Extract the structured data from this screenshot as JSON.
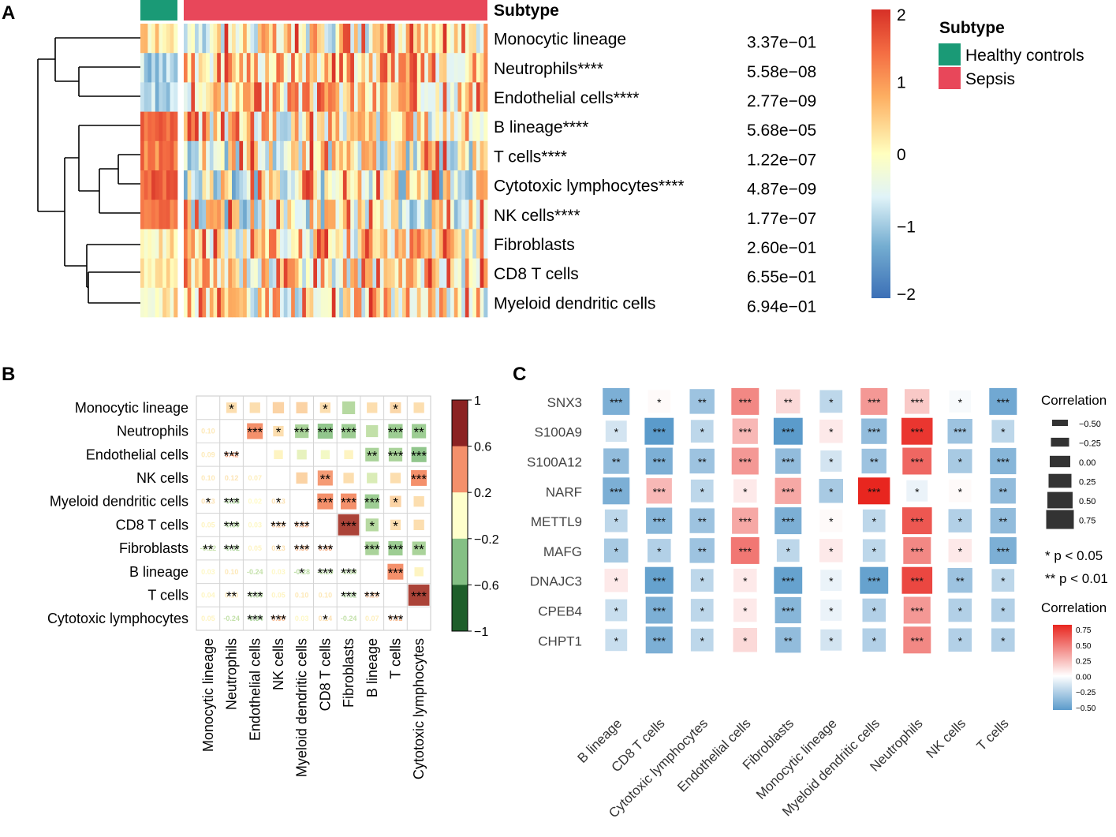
{
  "panels": {
    "a": "A",
    "b": "B",
    "c": "C"
  },
  "colors": {
    "healthy": "#1a9a76",
    "sepsis": "#e8475a",
    "text": "#000000",
    "heat_scale": [
      "#3b6fb6",
      "#74add1",
      "#e0f3f8",
      "#ffffbf",
      "#fdae61",
      "#f46d43",
      "#d73027"
    ],
    "corr_b_scale": [
      "#1e5e2a",
      "#85c085",
      "#ffffcc",
      "#f4906b",
      "#8b2222"
    ],
    "corr_c_scale": [
      "#5b9bcb",
      "#ffffff",
      "#e8261f"
    ]
  },
  "chart_data": [
    {
      "panel": "A",
      "type": "heatmap",
      "title": "Subtype",
      "annotation_title": "Subtype",
      "groups": [
        {
          "name": "Healthy controls",
          "count": 10
        },
        {
          "name": "Sepsis",
          "count": 82
        }
      ],
      "rows": [
        {
          "label": "Monocytic lineage",
          "pvalue": "3.37e−01",
          "control_mean": 0.2,
          "sepsis_mean": 0.0
        },
        {
          "label": "Neutrophils****",
          "pvalue": "5.58e−08",
          "control_mean": -1.0,
          "sepsis_mean": 0.5
        },
        {
          "label": "Endothelial cells****",
          "pvalue": "2.77e−09",
          "control_mean": -0.9,
          "sepsis_mean": 0.3
        },
        {
          "label": "B lineage****",
          "pvalue": "5.68e−05",
          "control_mean": 1.3,
          "sepsis_mean": 0.1
        },
        {
          "label": "T cells****",
          "pvalue": "1.22e−07",
          "control_mean": 1.2,
          "sepsis_mean": -0.2
        },
        {
          "label": "Cytotoxic lymphocytes****",
          "pvalue": "4.87e−09",
          "control_mean": 1.5,
          "sepsis_mean": -0.3
        },
        {
          "label": "NK cells****",
          "pvalue": "1.77e−07",
          "control_mean": 1.4,
          "sepsis_mean": -0.2
        },
        {
          "label": "Fibroblasts",
          "pvalue": "2.60e−01",
          "control_mean": 0.1,
          "sepsis_mean": 0.2
        },
        {
          "label": "CD8 T cells",
          "pvalue": "6.55e−01",
          "control_mean": 0.1,
          "sepsis_mean": 0.1
        },
        {
          "label": "Myeloid dendritic cells",
          "pvalue": "6.94e−01",
          "control_mean": 0.1,
          "sepsis_mean": 0.1
        }
      ],
      "colorbar": {
        "min": -2,
        "max": 2,
        "ticks": [
          "2",
          "1",
          "0",
          "−1",
          "−2"
        ]
      },
      "legend": {
        "title": "Subtype",
        "items": [
          "Healthy controls",
          "Sepsis"
        ]
      }
    },
    {
      "panel": "B",
      "type": "heatmap",
      "variables": [
        "Monocytic lineage",
        "Neutrophils",
        "Endothelial cells",
        "NK cells",
        "Myeloid dendritic cells",
        "CD8 T cells",
        "Fibroblasts",
        "B lineage",
        "T cells",
        "Cytotoxic lymphocytes"
      ],
      "upper": [
        {
          "r": 0,
          "c": 1,
          "v": 0.15,
          "s": "*"
        },
        {
          "r": 0,
          "c": 2,
          "v": 0.15,
          "s": ""
        },
        {
          "r": 0,
          "c": 3,
          "v": 0.2,
          "s": ""
        },
        {
          "r": 0,
          "c": 4,
          "v": 0.2,
          "s": ""
        },
        {
          "r": 0,
          "c": 5,
          "v": 0.15,
          "s": "*"
        },
        {
          "r": 0,
          "c": 6,
          "v": -0.3,
          "s": ""
        },
        {
          "r": 0,
          "c": 7,
          "v": 0.15,
          "s": ""
        },
        {
          "r": 0,
          "c": 8,
          "v": 0.18,
          "s": "*"
        },
        {
          "r": 0,
          "c": 9,
          "v": 0.15,
          "s": ""
        },
        {
          "r": 1,
          "c": 2,
          "v": 0.5,
          "s": "***"
        },
        {
          "r": 1,
          "c": 3,
          "v": 0.15,
          "s": "*"
        },
        {
          "r": 1,
          "c": 4,
          "v": -0.35,
          "s": "***"
        },
        {
          "r": 1,
          "c": 5,
          "v": -0.45,
          "s": "***"
        },
        {
          "r": 1,
          "c": 6,
          "v": -0.4,
          "s": "***"
        },
        {
          "r": 1,
          "c": 7,
          "v": -0.25,
          "s": ""
        },
        {
          "r": 1,
          "c": 8,
          "v": -0.4,
          "s": "***"
        },
        {
          "r": 1,
          "c": 9,
          "v": -0.4,
          "s": "**"
        },
        {
          "r": 2,
          "c": 3,
          "v": 0.05,
          "s": ""
        },
        {
          "r": 2,
          "c": 4,
          "v": -0.1,
          "s": ""
        },
        {
          "r": 2,
          "c": 5,
          "v": -0.05,
          "s": ""
        },
        {
          "r": 2,
          "c": 6,
          "v": 0.05,
          "s": ""
        },
        {
          "r": 2,
          "c": 7,
          "v": -0.35,
          "s": "**"
        },
        {
          "r": 2,
          "c": 8,
          "v": -0.35,
          "s": "***"
        },
        {
          "r": 2,
          "c": 9,
          "v": -0.45,
          "s": "***"
        },
        {
          "r": 3,
          "c": 4,
          "v": 0.2,
          "s": ""
        },
        {
          "r": 3,
          "c": 5,
          "v": 0.45,
          "s": "**"
        },
        {
          "r": 3,
          "c": 6,
          "v": 0.15,
          "s": ""
        },
        {
          "r": 3,
          "c": 7,
          "v": -0.15,
          "s": ""
        },
        {
          "r": 3,
          "c": 8,
          "v": 0.15,
          "s": ""
        },
        {
          "r": 3,
          "c": 9,
          "v": 0.5,
          "s": "***"
        },
        {
          "r": 4,
          "c": 5,
          "v": 0.5,
          "s": "***"
        },
        {
          "r": 4,
          "c": 6,
          "v": 0.5,
          "s": "***"
        },
        {
          "r": 4,
          "c": 7,
          "v": -0.4,
          "s": "***"
        },
        {
          "r": 4,
          "c": 8,
          "v": 0.2,
          "s": "*"
        },
        {
          "r": 4,
          "c": 9,
          "v": 0.15,
          "s": ""
        },
        {
          "r": 5,
          "c": 6,
          "v": 0.85,
          "s": "***"
        },
        {
          "r": 5,
          "c": 7,
          "v": -0.3,
          "s": "*"
        },
        {
          "r": 5,
          "c": 8,
          "v": 0.15,
          "s": "*"
        },
        {
          "r": 5,
          "c": 9,
          "v": 0.15,
          "s": ""
        },
        {
          "r": 6,
          "c": 7,
          "v": -0.35,
          "s": "***"
        },
        {
          "r": 6,
          "c": 8,
          "v": -0.4,
          "s": "***"
        },
        {
          "r": 6,
          "c": 9,
          "v": -0.35,
          "s": "**"
        },
        {
          "r": 7,
          "c": 8,
          "v": 0.5,
          "s": "***"
        },
        {
          "r": 7,
          "c": 9,
          "v": 0.05,
          "s": ""
        },
        {
          "r": 8,
          "c": 9,
          "v": 0.85,
          "s": "***"
        }
      ],
      "lower": [
        {
          "r": 1,
          "c": 0,
          "t": "0.10",
          "s": ""
        },
        {
          "r": 2,
          "c": 0,
          "t": "0.09",
          "s": ""
        },
        {
          "r": 2,
          "c": 1,
          "t": "0.42",
          "s": "***"
        },
        {
          "r": 3,
          "c": 0,
          "t": "0.10",
          "s": ""
        },
        {
          "r": 3,
          "c": 1,
          "t": "0.12",
          "s": ""
        },
        {
          "r": 3,
          "c": 2,
          "t": "0.07",
          "s": ""
        },
        {
          "r": 4,
          "c": 0,
          "t": "0.13",
          "s": "*"
        },
        {
          "r": 4,
          "c": 1,
          "t": "-0.33",
          "s": "***"
        },
        {
          "r": 4,
          "c": 2,
          "t": "0.02",
          "s": ""
        },
        {
          "r": 4,
          "c": 3,
          "t": "0.13",
          "s": "*"
        },
        {
          "r": 5,
          "c": 0,
          "t": "0.05",
          "s": ""
        },
        {
          "r": 5,
          "c": 1,
          "t": "-0.30",
          "s": "***"
        },
        {
          "r": 5,
          "c": 2,
          "t": "0.03",
          "s": ""
        },
        {
          "r": 5,
          "c": 3,
          "t": "0.26",
          "s": "***"
        },
        {
          "r": 5,
          "c": 4,
          "t": "0.33",
          "s": "***"
        },
        {
          "r": 6,
          "c": 0,
          "t": "-0.22",
          "s": "**"
        },
        {
          "r": 6,
          "c": 1,
          "t": "-0.32",
          "s": "***"
        },
        {
          "r": 6,
          "c": 2,
          "t": "0.05",
          "s": ""
        },
        {
          "r": 6,
          "c": 3,
          "t": "0.13",
          "s": "*"
        },
        {
          "r": 6,
          "c": 4,
          "t": "0.30",
          "s": "***"
        },
        {
          "r": 6,
          "c": 5,
          "t": "0.36",
          "s": "***"
        },
        {
          "r": 7,
          "c": 0,
          "t": "0.03",
          "s": ""
        },
        {
          "r": 7,
          "c": 1,
          "t": "0.10",
          "s": ""
        },
        {
          "r": 7,
          "c": 2,
          "t": "-0.24",
          "s": ""
        },
        {
          "r": 7,
          "c": 3,
          "t": "0.03",
          "s": ""
        },
        {
          "r": 7,
          "c": 4,
          "t": "-0.28",
          "s": "*"
        },
        {
          "r": 7,
          "c": 5,
          "t": "-0.29",
          "s": "***"
        },
        {
          "r": 7,
          "c": 6,
          "t": "-0.30",
          "s": "***"
        },
        {
          "r": 8,
          "c": 0,
          "t": "0.04",
          "s": ""
        },
        {
          "r": 8,
          "c": 1,
          "t": "0.10",
          "s": "**"
        },
        {
          "r": 8,
          "c": 2,
          "t": "-0.30",
          "s": "***"
        },
        {
          "r": 8,
          "c": 3,
          "t": "0.05",
          "s": ""
        },
        {
          "r": 8,
          "c": 4,
          "t": "0.10",
          "s": ""
        },
        {
          "r": 8,
          "c": 5,
          "t": "0.10",
          "s": ""
        },
        {
          "r": 8,
          "c": 6,
          "t": "-0.32",
          "s": "***"
        },
        {
          "r": 8,
          "c": 7,
          "t": "0.29",
          "s": "***"
        },
        {
          "r": 9,
          "c": 0,
          "t": "0.05",
          "s": ""
        },
        {
          "r": 9,
          "c": 1,
          "t": "-0.24",
          "s": ""
        },
        {
          "r": 9,
          "c": 2,
          "t": "-0.34",
          "s": "***"
        },
        {
          "r": 9,
          "c": 3,
          "t": "0.30",
          "s": "***"
        },
        {
          "r": 9,
          "c": 4,
          "t": "0.03",
          "s": ""
        },
        {
          "r": 9,
          "c": 5,
          "t": "0.14",
          "s": "*"
        },
        {
          "r": 9,
          "c": 6,
          "t": "-0.24",
          "s": ""
        },
        {
          "r": 9,
          "c": 7,
          "t": "0.07",
          "s": ""
        },
        {
          "r": 9,
          "c": 8,
          "t": "0.31",
          "s": "***"
        }
      ],
      "colorbar": {
        "min": -1,
        "max": 1,
        "ticks": [
          "1",
          "0.6",
          "0.2",
          "−0.2",
          "−0.6",
          "−1"
        ]
      }
    },
    {
      "panel": "C",
      "type": "heatmap",
      "genes": [
        "SNX3",
        "S100A9",
        "S100A12",
        "NARF",
        "METTL9",
        "MAFG",
        "DNAJC3",
        "CPEB4",
        "CHPT1"
      ],
      "cells": [
        "B lineage",
        "CD8 T cells",
        "Cytotoxic lymphocytes",
        "Endothelial cells",
        "Fibroblasts",
        "Monocytic lineage",
        "Myeloid dendritic cells",
        "Neutrophils",
        "NK cells",
        "T cells"
      ],
      "values": [
        [
          -0.45,
          0.15,
          -0.3,
          0.5,
          0.25,
          -0.15,
          0.45,
          0.3,
          0.1,
          -0.5
        ],
        [
          -0.05,
          -0.6,
          -0.15,
          0.35,
          -0.6,
          0.2,
          -0.35,
          0.75,
          -0.3,
          -0.15
        ],
        [
          -0.35,
          -0.45,
          -0.3,
          0.45,
          -0.35,
          -0.05,
          -0.3,
          0.6,
          -0.25,
          -0.4
        ],
        [
          -0.45,
          0.35,
          -0.15,
          0.2,
          0.4,
          -0.25,
          0.8,
          0.05,
          0.15,
          -0.35
        ],
        [
          -0.15,
          -0.4,
          -0.3,
          0.4,
          -0.45,
          0.15,
          -0.15,
          0.65,
          -0.2,
          -0.35
        ],
        [
          -0.25,
          -0.2,
          -0.3,
          0.55,
          -0.15,
          0.2,
          -0.15,
          0.5,
          0.2,
          -0.45
        ],
        [
          0.2,
          -0.55,
          -0.15,
          0.2,
          -0.55,
          0.05,
          -0.55,
          0.7,
          -0.3,
          -0.15
        ],
        [
          -0.1,
          -0.45,
          -0.15,
          0.2,
          -0.4,
          0.05,
          -0.2,
          0.45,
          -0.2,
          -0.2
        ],
        [
          -0.1,
          -0.45,
          -0.15,
          0.25,
          -0.35,
          -0.05,
          -0.2,
          0.5,
          -0.2,
          -0.2
        ]
      ],
      "signif": [
        [
          "***",
          "*",
          "**",
          "***",
          "**",
          "*",
          "***",
          "***",
          "*",
          "***"
        ],
        [
          "*",
          "***",
          "*",
          "***",
          "***",
          "*",
          "***",
          "***",
          "***",
          "*"
        ],
        [
          "**",
          "***",
          "**",
          "***",
          "***",
          "*",
          "**",
          "***",
          "*",
          "***"
        ],
        [
          "***",
          "***",
          "*",
          "*",
          "***",
          "*",
          "***",
          "*",
          "*",
          "**"
        ],
        [
          "*",
          "***",
          "**",
          "***",
          "***",
          "*",
          "*",
          "***",
          "*",
          "**"
        ],
        [
          "*",
          "*",
          "**",
          "***",
          "*",
          "*",
          "*",
          "***",
          "*",
          "***"
        ],
        [
          "*",
          "***",
          "*",
          "*",
          "***",
          "*",
          "***",
          "***",
          "**",
          "*"
        ],
        [
          "*",
          "***",
          "*",
          "*",
          "***",
          "*",
          "*",
          "***",
          "*",
          "*"
        ],
        [
          "*",
          "***",
          "*",
          "*",
          "**",
          "*",
          "*",
          "***",
          "*",
          "*"
        ]
      ],
      "size_legend": {
        "title": "Correlation",
        "items": [
          "−0.50",
          "−0.25",
          "0.00",
          "0.25",
          "0.50",
          "0.75"
        ]
      },
      "pval_legend": [
        "* p < 0.05",
        "** p < 0.01"
      ],
      "color_legend": {
        "title": "Correlation",
        "ticks": [
          "0.75",
          "0.50",
          "0.25",
          "0.00",
          "−0.25",
          "−0.50"
        ]
      }
    }
  ]
}
